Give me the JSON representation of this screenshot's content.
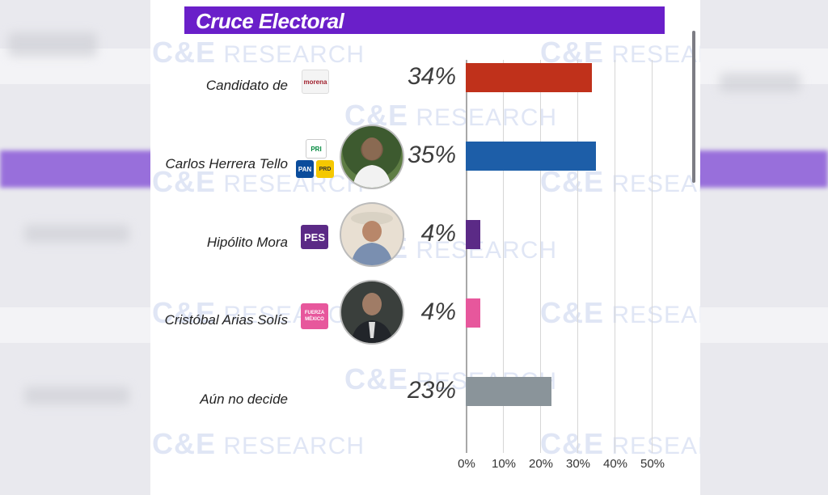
{
  "title": "Cruce Electoral",
  "watermark": "C&E RESEARCH",
  "chart_data": {
    "type": "bar",
    "orientation": "horizontal",
    "categories": [
      "Candidato de",
      "Carlos Herrera Tello",
      "Hipólito Mora",
      "Cristóbal Arias Solís",
      "Aún no decide"
    ],
    "values": [
      34,
      35,
      4,
      4,
      23
    ],
    "value_labels": [
      "34%",
      "35%",
      "4%",
      "4%",
      "23%"
    ],
    "colors": [
      "#c0311b",
      "#1d5ea8",
      "#5b2a86",
      "#e7579c",
      "#8a949a"
    ],
    "xlim": [
      0,
      50
    ],
    "xticks": [
      "0%",
      "10%",
      "20%",
      "30%",
      "40%",
      "50%"
    ],
    "grid": true
  },
  "logos": {
    "morena": "morena",
    "pri": "PRI",
    "pan": "PAN",
    "prd": "PRD",
    "pes": "PES",
    "fuerza": "FUERZA MÉXICO"
  }
}
